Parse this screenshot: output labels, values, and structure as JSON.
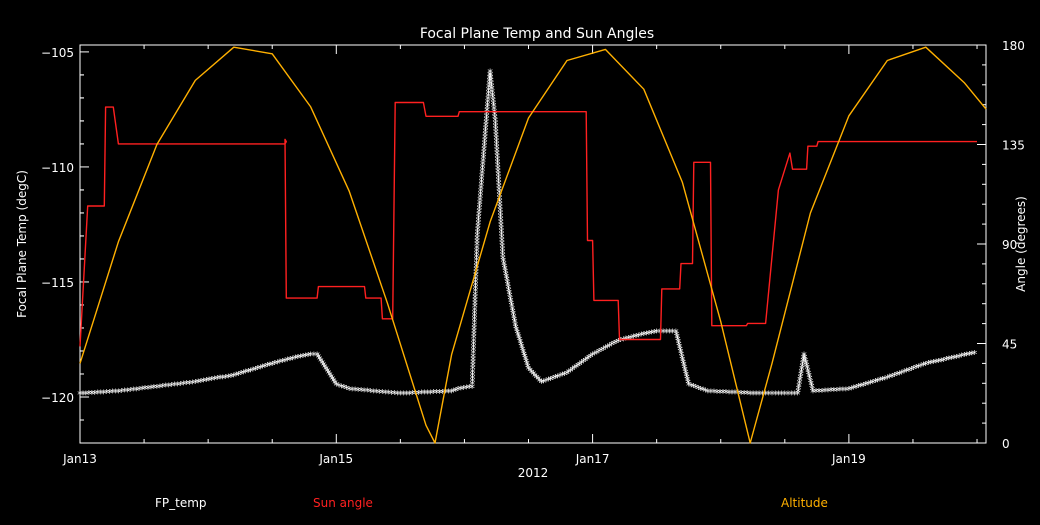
{
  "chart_data": {
    "type": "line",
    "title": "Focal Plane Temp and Sun Angles",
    "xlabel": "2012",
    "ylabel_left": "Focal Plane Temp (degC)",
    "ylabel_right": "Angle (degrees)",
    "x_ticks": [
      {
        "t": 0,
        "label": "Jan13"
      },
      {
        "t": 2,
        "label": "Jan15"
      },
      {
        "t": 4,
        "label": "Jan17"
      },
      {
        "t": 6,
        "label": "Jan19"
      }
    ],
    "xlim": [
      0,
      7.07
    ],
    "ylim_left": [
      -122,
      -104.7
    ],
    "ylim_right": [
      0,
      180
    ],
    "yticks_left": [
      -105,
      -110,
      -115,
      -120
    ],
    "yticks_right": [
      0,
      45,
      90,
      135,
      180
    ],
    "colors": {
      "fp_temp": "#ffffff",
      "sun_angle": "#ff2020",
      "altitude": "#ffb000",
      "axes": "#ffffff"
    },
    "legend": [
      {
        "label": "FP_temp",
        "color": "#ffffff"
      },
      {
        "label": "Sun angle",
        "color": "#ff2020"
      },
      {
        "label": "Altitude",
        "color": "#ffb000"
      }
    ],
    "series": [
      {
        "key": "fp_temp",
        "axis": "left",
        "marker": "asterisk",
        "points": [
          [
            0.0,
            -119.9
          ],
          [
            0.3,
            -119.8
          ],
          [
            0.6,
            -119.6
          ],
          [
            0.9,
            -119.4
          ],
          [
            1.2,
            -119.1
          ],
          [
            1.5,
            -118.6
          ],
          [
            1.7,
            -118.3
          ],
          [
            1.8,
            -118.2
          ],
          [
            1.85,
            -118.2
          ],
          [
            2.0,
            -119.5
          ],
          [
            2.1,
            -119.7
          ],
          [
            2.5,
            -119.9
          ],
          [
            2.9,
            -119.8
          ],
          [
            2.95,
            -119.7
          ],
          [
            3.06,
            -119.6
          ],
          [
            3.1,
            -113
          ],
          [
            3.2,
            -105.9
          ],
          [
            3.24,
            -108
          ],
          [
            3.3,
            -114
          ],
          [
            3.4,
            -117
          ],
          [
            3.5,
            -118.8
          ],
          [
            3.6,
            -119.4
          ],
          [
            3.8,
            -119.0
          ],
          [
            4.0,
            -118.2
          ],
          [
            4.2,
            -117.6
          ],
          [
            4.4,
            -117.3
          ],
          [
            4.5,
            -117.2
          ],
          [
            4.65,
            -117.2
          ],
          [
            4.75,
            -119.5
          ],
          [
            4.9,
            -119.8
          ],
          [
            5.3,
            -119.9
          ],
          [
            5.6,
            -119.9
          ],
          [
            5.65,
            -118.2
          ],
          [
            5.72,
            -119.8
          ],
          [
            6.0,
            -119.7
          ],
          [
            6.3,
            -119.2
          ],
          [
            6.6,
            -118.6
          ],
          [
            7.0,
            -118.1
          ]
        ]
      },
      {
        "key": "sun_angle",
        "axis": "left",
        "marker": "none",
        "points": [
          [
            0.0,
            -117.8
          ],
          [
            0.06,
            -111.7
          ],
          [
            0.19,
            -111.7
          ],
          [
            0.2,
            -107.4
          ],
          [
            0.26,
            -107.4
          ],
          [
            0.3,
            -109.0
          ],
          [
            1.6,
            -109.0
          ],
          [
            1.61,
            -108.9
          ],
          [
            1.6,
            -108.8
          ],
          [
            1.61,
            -115.7
          ],
          [
            1.85,
            -115.7
          ],
          [
            1.86,
            -115.2
          ],
          [
            2.22,
            -115.2
          ],
          [
            2.23,
            -115.7
          ],
          [
            2.35,
            -115.7
          ],
          [
            2.36,
            -116.6
          ],
          [
            2.44,
            -116.6
          ],
          [
            2.46,
            -107.2
          ],
          [
            2.68,
            -107.2
          ],
          [
            2.7,
            -107.8
          ],
          [
            2.95,
            -107.8
          ],
          [
            2.96,
            -107.6
          ],
          [
            3.95,
            -107.6
          ],
          [
            3.96,
            -113.2
          ],
          [
            4.0,
            -113.2
          ],
          [
            4.01,
            -115.8
          ],
          [
            4.2,
            -115.8
          ],
          [
            4.21,
            -117.5
          ],
          [
            4.53,
            -117.5
          ],
          [
            4.54,
            -115.3
          ],
          [
            4.68,
            -115.3
          ],
          [
            4.69,
            -114.2
          ],
          [
            4.78,
            -114.2
          ],
          [
            4.79,
            -109.8
          ],
          [
            4.92,
            -109.8
          ],
          [
            4.93,
            -116.9
          ],
          [
            5.2,
            -116.9
          ],
          [
            5.21,
            -116.8
          ],
          [
            5.35,
            -116.8
          ],
          [
            5.45,
            -111
          ],
          [
            5.54,
            -109.4
          ],
          [
            5.56,
            -110.1
          ],
          [
            5.67,
            -110.1
          ],
          [
            5.68,
            -109.1
          ],
          [
            5.75,
            -109.1
          ],
          [
            5.76,
            -108.9
          ],
          [
            7.0,
            -108.9
          ]
        ]
      },
      {
        "key": "altitude",
        "axis": "right",
        "marker": "none",
        "points": [
          [
            0.0,
            36
          ],
          [
            0.3,
            91
          ],
          [
            0.6,
            135
          ],
          [
            0.9,
            164
          ],
          [
            1.2,
            179
          ],
          [
            1.5,
            176
          ],
          [
            1.8,
            152
          ],
          [
            2.1,
            114
          ],
          [
            2.4,
            63
          ],
          [
            2.7,
            8
          ],
          [
            2.77,
            0
          ],
          [
            2.9,
            40
          ],
          [
            3.2,
            100
          ],
          [
            3.5,
            147
          ],
          [
            3.8,
            173
          ],
          [
            4.1,
            178
          ],
          [
            4.4,
            160
          ],
          [
            4.7,
            118
          ],
          [
            5.0,
            55
          ],
          [
            5.23,
            0
          ],
          [
            5.4,
            36
          ],
          [
            5.7,
            104
          ],
          [
            6.0,
            148
          ],
          [
            6.3,
            173
          ],
          [
            6.6,
            179
          ],
          [
            6.9,
            163
          ],
          [
            7.07,
            151
          ]
        ]
      }
    ]
  }
}
